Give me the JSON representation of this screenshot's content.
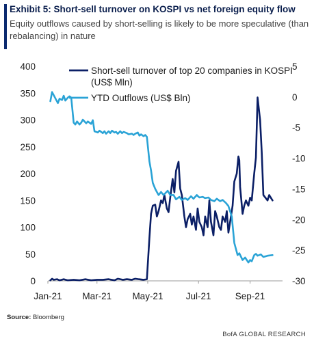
{
  "header": {
    "title": "Exhibit 5: Short-sell turnover on KOSPI vs net foreign equity flow",
    "subtitle": "Equity outflows caused by short-selling is likely to be more speculative (than rebalancing) in nature"
  },
  "footer": {
    "source_label": "Source:",
    "source_value": "Bloomberg",
    "brand": "BofA GLOBAL RESEARCH"
  },
  "colors": {
    "series_dark": "#0b1f66",
    "series_light": "#2aa3d6",
    "axis": "#9a9a9a",
    "text": "#1a1a1a"
  },
  "chart_data": {
    "type": "line",
    "grid": false,
    "legend_position": "top-right",
    "x_tick_labels": [
      "Jan-21",
      "Mar-21",
      "May-21",
      "Jul-21",
      "Sep-21"
    ],
    "x_tick_dates": [
      "2021-01-01",
      "2021-03-01",
      "2021-05-01",
      "2021-07-01",
      "2021-09-01"
    ],
    "xlim": [
      "2021-01-01",
      "2021-10-10"
    ],
    "y_left": {
      "lim": [
        0,
        400
      ],
      "ticks": [
        0,
        50,
        100,
        150,
        200,
        250,
        300,
        350,
        400
      ]
    },
    "y_right": {
      "lim": [
        -30,
        5
      ],
      "ticks": [
        -30,
        -25,
        -20,
        -15,
        -10,
        -5,
        0,
        5
      ]
    },
    "series": [
      {
        "name": "Short-sell turnover of top 20 companies in KOSPI (US$ Mln)",
        "axis": "left",
        "color": "#0b1f66",
        "points": [
          [
            "2021-01-04",
            1
          ],
          [
            "2021-01-06",
            4
          ],
          [
            "2021-01-08",
            2
          ],
          [
            "2021-01-12",
            3
          ],
          [
            "2021-01-15",
            1
          ],
          [
            "2021-01-20",
            3
          ],
          [
            "2021-01-25",
            1
          ],
          [
            "2021-02-01",
            2
          ],
          [
            "2021-02-08",
            1
          ],
          [
            "2021-02-15",
            3
          ],
          [
            "2021-02-22",
            1
          ],
          [
            "2021-03-01",
            2
          ],
          [
            "2021-03-08",
            2
          ],
          [
            "2021-03-15",
            3
          ],
          [
            "2021-03-22",
            1
          ],
          [
            "2021-03-26",
            4
          ],
          [
            "2021-04-01",
            2
          ],
          [
            "2021-04-06",
            3
          ],
          [
            "2021-04-12",
            2
          ],
          [
            "2021-04-16",
            4
          ],
          [
            "2021-04-20",
            3
          ],
          [
            "2021-04-26",
            2
          ],
          [
            "2021-04-30",
            3
          ],
          [
            "2021-05-03",
            80
          ],
          [
            "2021-05-05",
            125
          ],
          [
            "2021-05-07",
            140
          ],
          [
            "2021-05-10",
            142
          ],
          [
            "2021-05-12",
            120
          ],
          [
            "2021-05-14",
            130
          ],
          [
            "2021-05-17",
            150
          ],
          [
            "2021-05-19",
            145
          ],
          [
            "2021-05-21",
            160
          ],
          [
            "2021-05-24",
            135
          ],
          [
            "2021-05-26",
            128
          ],
          [
            "2021-05-28",
            155
          ],
          [
            "2021-05-31",
            190
          ],
          [
            "2021-06-02",
            165
          ],
          [
            "2021-06-04",
            205
          ],
          [
            "2021-06-07",
            222
          ],
          [
            "2021-06-09",
            172
          ],
          [
            "2021-06-11",
            160
          ],
          [
            "2021-06-14",
            120
          ],
          [
            "2021-06-16",
            100
          ],
          [
            "2021-06-18",
            115
          ],
          [
            "2021-06-21",
            125
          ],
          [
            "2021-06-23",
            105
          ],
          [
            "2021-06-25",
            120
          ],
          [
            "2021-06-28",
            95
          ],
          [
            "2021-06-30",
            135
          ],
          [
            "2021-07-02",
            110
          ],
          [
            "2021-07-05",
            100
          ],
          [
            "2021-07-07",
            85
          ],
          [
            "2021-07-09",
            120
          ],
          [
            "2021-07-12",
            100
          ],
          [
            "2021-07-14",
            150
          ],
          [
            "2021-07-16",
            110
          ],
          [
            "2021-07-19",
            85
          ],
          [
            "2021-07-21",
            130
          ],
          [
            "2021-07-23",
            120
          ],
          [
            "2021-07-26",
            100
          ],
          [
            "2021-07-28",
            95
          ],
          [
            "2021-07-30",
            120
          ],
          [
            "2021-08-02",
            110
          ],
          [
            "2021-08-04",
            130
          ],
          [
            "2021-08-06",
            90
          ],
          [
            "2021-08-09",
            120
          ],
          [
            "2021-08-11",
            140
          ],
          [
            "2021-08-13",
            185
          ],
          [
            "2021-08-16",
            200
          ],
          [
            "2021-08-18",
            232
          ],
          [
            "2021-08-19",
            225
          ],
          [
            "2021-08-20",
            175
          ],
          [
            "2021-08-23",
            125
          ],
          [
            "2021-08-25",
            140
          ],
          [
            "2021-08-27",
            150
          ],
          [
            "2021-08-30",
            140
          ],
          [
            "2021-09-01",
            155
          ],
          [
            "2021-09-03",
            150
          ],
          [
            "2021-09-06",
            200
          ],
          [
            "2021-09-08",
            230
          ],
          [
            "2021-09-10",
            342
          ],
          [
            "2021-09-13",
            300
          ],
          [
            "2021-09-15",
            240
          ],
          [
            "2021-09-17",
            160
          ],
          [
            "2021-09-22",
            150
          ],
          [
            "2021-09-24",
            160
          ],
          [
            "2021-09-28",
            150
          ]
        ]
      },
      {
        "name": "YTD Outflows (US$ Bln)",
        "axis": "right",
        "color": "#2aa3d6",
        "points": [
          [
            "2021-01-04",
            -0.7
          ],
          [
            "2021-01-06",
            0.8
          ],
          [
            "2021-01-08",
            0.3
          ],
          [
            "2021-01-11",
            -0.5
          ],
          [
            "2021-01-13",
            -1.0
          ],
          [
            "2021-01-15",
            -0.3
          ],
          [
            "2021-01-18",
            -0.5
          ],
          [
            "2021-01-20",
            0.2
          ],
          [
            "2021-01-22",
            -0.6
          ],
          [
            "2021-01-25",
            -0.1
          ],
          [
            "2021-01-27",
            0.1
          ],
          [
            "2021-01-29",
            -0.1
          ],
          [
            "2021-02-01",
            -4.2
          ],
          [
            "2021-02-03",
            -4.5
          ],
          [
            "2021-02-05",
            -4.0
          ],
          [
            "2021-02-08",
            -4.5
          ],
          [
            "2021-02-10",
            -4.2
          ],
          [
            "2021-02-12",
            -3.7
          ],
          [
            "2021-02-16",
            -4.3
          ],
          [
            "2021-02-18",
            -4.0
          ],
          [
            "2021-02-22",
            -4.4
          ],
          [
            "2021-02-24",
            -3.8
          ],
          [
            "2021-02-26",
            -5.6
          ],
          [
            "2021-03-02",
            -5.8
          ],
          [
            "2021-03-04",
            -5.5
          ],
          [
            "2021-03-08",
            -5.9
          ],
          [
            "2021-03-10",
            -5.6
          ],
          [
            "2021-03-12",
            -6.0
          ],
          [
            "2021-03-15",
            -5.6
          ],
          [
            "2021-03-17",
            -5.9
          ],
          [
            "2021-03-19",
            -5.5
          ],
          [
            "2021-03-22",
            -5.8
          ],
          [
            "2021-03-24",
            -5.7
          ],
          [
            "2021-03-26",
            -6.0
          ],
          [
            "2021-03-29",
            -5.6
          ],
          [
            "2021-03-31",
            -5.9
          ],
          [
            "2021-04-02",
            -5.7
          ],
          [
            "2021-04-06",
            -5.9
          ],
          [
            "2021-04-08",
            -6.1
          ],
          [
            "2021-04-12",
            -6.0
          ],
          [
            "2021-04-14",
            -6.2
          ],
          [
            "2021-04-16",
            -6.0
          ],
          [
            "2021-04-19",
            -5.8
          ],
          [
            "2021-04-21",
            -6.3
          ],
          [
            "2021-04-23",
            -6.1
          ],
          [
            "2021-04-26",
            -6.4
          ],
          [
            "2021-04-28",
            -6.2
          ],
          [
            "2021-04-30",
            -6.5
          ],
          [
            "2021-05-03",
            -10.5
          ],
          [
            "2021-05-05",
            -12.0
          ],
          [
            "2021-05-07",
            -14.0
          ],
          [
            "2021-05-10",
            -15.0
          ],
          [
            "2021-05-12",
            -15.5
          ],
          [
            "2021-05-14",
            -16.0
          ],
          [
            "2021-05-17",
            -15.5
          ],
          [
            "2021-05-20",
            -16.0
          ],
          [
            "2021-05-25",
            -15.3
          ],
          [
            "2021-05-28",
            -16.0
          ],
          [
            "2021-06-01",
            -16.0
          ],
          [
            "2021-06-04",
            -16.7
          ],
          [
            "2021-06-08",
            -16.3
          ],
          [
            "2021-06-11",
            -16.8
          ],
          [
            "2021-06-15",
            -16.5
          ],
          [
            "2021-06-18",
            -16.8
          ],
          [
            "2021-06-22",
            -16.2
          ],
          [
            "2021-06-25",
            -16.6
          ],
          [
            "2021-06-29",
            -16.0
          ],
          [
            "2021-07-02",
            -16.4
          ],
          [
            "2021-07-06",
            -16.3
          ],
          [
            "2021-07-09",
            -16.5
          ],
          [
            "2021-07-13",
            -16.4
          ],
          [
            "2021-07-16",
            -16.8
          ],
          [
            "2021-07-20",
            -17.0
          ],
          [
            "2021-07-23",
            -16.6
          ],
          [
            "2021-07-27",
            -17.0
          ],
          [
            "2021-07-30",
            -16.8
          ],
          [
            "2021-08-03",
            -17.3
          ],
          [
            "2021-08-06",
            -17.8
          ],
          [
            "2021-08-10",
            -19.5
          ],
          [
            "2021-08-13",
            -23.8
          ],
          [
            "2021-08-17",
            -25.8
          ],
          [
            "2021-08-19",
            -25.5
          ],
          [
            "2021-08-23",
            -26.6
          ],
          [
            "2021-08-26",
            -26.2
          ],
          [
            "2021-08-30",
            -27.0
          ],
          [
            "2021-09-01",
            -26.6
          ],
          [
            "2021-09-03",
            -26.8
          ],
          [
            "2021-09-06",
            -25.8
          ],
          [
            "2021-09-08",
            -25.6
          ],
          [
            "2021-09-10",
            -25.9
          ],
          [
            "2021-09-14",
            -25.7
          ],
          [
            "2021-09-17",
            -26.1
          ],
          [
            "2021-09-22",
            -25.9
          ],
          [
            "2021-09-28",
            -25.8
          ]
        ]
      }
    ]
  }
}
